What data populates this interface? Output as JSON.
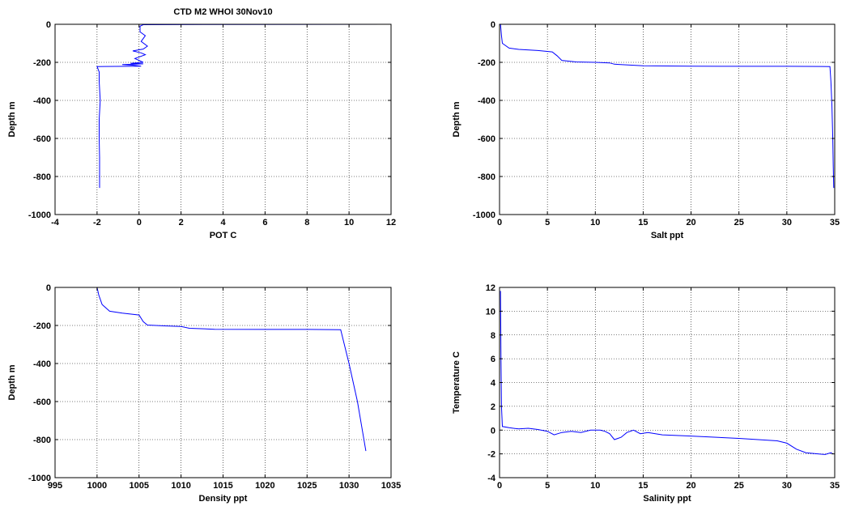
{
  "chart_data": [
    {
      "type": "line",
      "title": "CTD M2 WHOI 30Nov10",
      "xlabel": "POT C",
      "ylabel": "Depth m",
      "xlim": [
        -4,
        12
      ],
      "ylim": [
        -1000,
        0
      ],
      "xticks": [
        -4,
        -2,
        0,
        2,
        4,
        6,
        8,
        10,
        12
      ],
      "yticks": [
        -1000,
        -800,
        -600,
        -400,
        -200,
        0
      ],
      "grid": true,
      "series": [
        {
          "color": "#0000ff",
          "points": [
            [
              11.7,
              0
            ],
            [
              3,
              -1
            ],
            [
              0.2,
              -2
            ],
            [
              0.05,
              -10
            ],
            [
              0.05,
              -40
            ],
            [
              0.3,
              -60
            ],
            [
              0.1,
              -90
            ],
            [
              0.4,
              -115
            ],
            [
              0.2,
              -130
            ],
            [
              -0.3,
              -140
            ],
            [
              0.1,
              -150
            ],
            [
              0.3,
              -160
            ],
            [
              -0.2,
              -180
            ],
            [
              0.2,
              -200
            ],
            [
              -0.4,
              -205
            ],
            [
              0.2,
              -208
            ],
            [
              -0.8,
              -212
            ],
            [
              -0.3,
              -215
            ],
            [
              0.1,
              -220
            ],
            [
              -2.0,
              -222
            ],
            [
              -1.9,
              -250
            ],
            [
              -1.9,
              -300
            ],
            [
              -1.85,
              -400
            ],
            [
              -1.9,
              -500
            ],
            [
              -1.9,
              -600
            ],
            [
              -1.88,
              -700
            ],
            [
              -1.88,
              -860
            ]
          ]
        }
      ]
    },
    {
      "type": "line",
      "title": "",
      "xlabel": "Salt ppt",
      "ylabel": "Depth m",
      "xlim": [
        0,
        35
      ],
      "ylim": [
        -1000,
        0
      ],
      "xticks": [
        0,
        5,
        10,
        15,
        20,
        25,
        30,
        35
      ],
      "yticks": [
        -1000,
        -800,
        -600,
        -400,
        -200,
        0
      ],
      "grid": true,
      "series": [
        {
          "color": "#0000ff",
          "points": [
            [
              0.1,
              0
            ],
            [
              0.2,
              -60
            ],
            [
              0.3,
              -100
            ],
            [
              1,
              -125
            ],
            [
              2,
              -132
            ],
            [
              4,
              -138
            ],
            [
              5.5,
              -145
            ],
            [
              6,
              -165
            ],
            [
              6.5,
              -190
            ],
            [
              8,
              -198
            ],
            [
              10,
              -200
            ],
            [
              11.5,
              -203
            ],
            [
              12,
              -210
            ],
            [
              15,
              -218
            ],
            [
              20,
              -220
            ],
            [
              25,
              -221
            ],
            [
              30,
              -221
            ],
            [
              34.5,
              -222
            ],
            [
              34.6,
              -300
            ],
            [
              34.7,
              -420
            ],
            [
              34.8,
              -600
            ],
            [
              34.85,
              -750
            ],
            [
              34.9,
              -860
            ]
          ]
        }
      ]
    },
    {
      "type": "line",
      "title": "",
      "xlabel": "Density ppt",
      "ylabel": "Depth m",
      "xlim": [
        995,
        1035
      ],
      "ylim": [
        -1000,
        0
      ],
      "xticks": [
        995,
        1000,
        1005,
        1010,
        1015,
        1020,
        1025,
        1030,
        1035
      ],
      "yticks": [
        -1000,
        -800,
        -600,
        -400,
        -200,
        0
      ],
      "grid": true,
      "series": [
        {
          "color": "#0000ff",
          "points": [
            [
              1000,
              0
            ],
            [
              1000.2,
              -40
            ],
            [
              1000.6,
              -90
            ],
            [
              1001.5,
              -125
            ],
            [
              1003,
              -135
            ],
            [
              1005,
              -145
            ],
            [
              1005.5,
              -180
            ],
            [
              1006,
              -198
            ],
            [
              1008,
              -202
            ],
            [
              1010,
              -205
            ],
            [
              1011,
              -215
            ],
            [
              1014,
              -220
            ],
            [
              1020,
              -221
            ],
            [
              1025,
              -221
            ],
            [
              1029,
              -222
            ],
            [
              1030,
              -400
            ],
            [
              1031,
              -600
            ],
            [
              1032,
              -860
            ]
          ]
        }
      ]
    },
    {
      "type": "line",
      "title": "",
      "xlabel": "Salinity ppt",
      "ylabel": "Temperature C",
      "xlim": [
        0,
        35
      ],
      "ylim": [
        -4,
        12
      ],
      "xticks": [
        0,
        5,
        10,
        15,
        20,
        25,
        30,
        35
      ],
      "yticks": [
        -4,
        -2,
        0,
        2,
        4,
        6,
        8,
        10,
        12
      ],
      "grid": true,
      "series": [
        {
          "color": "#0000ff",
          "points": [
            [
              0.1,
              11.7
            ],
            [
              0.15,
              6
            ],
            [
              0.2,
              2
            ],
            [
              0.3,
              0.3
            ],
            [
              1,
              0.2
            ],
            [
              2,
              0.1
            ],
            [
              3,
              0.15
            ],
            [
              4,
              0.05
            ],
            [
              5,
              -0.1
            ],
            [
              5.7,
              -0.4
            ],
            [
              6.5,
              -0.2
            ],
            [
              7.5,
              -0.1
            ],
            [
              8.5,
              -0.2
            ],
            [
              9.5,
              0
            ],
            [
              10.5,
              0
            ],
            [
              11,
              -0.1
            ],
            [
              11.5,
              -0.3
            ],
            [
              12,
              -0.8
            ],
            [
              12.7,
              -0.6
            ],
            [
              13.3,
              -0.2
            ],
            [
              14,
              0
            ],
            [
              14.7,
              -0.3
            ],
            [
              15.5,
              -0.2
            ],
            [
              17,
              -0.4
            ],
            [
              20,
              -0.5
            ],
            [
              25,
              -0.7
            ],
            [
              29,
              -0.9
            ],
            [
              30,
              -1.1
            ],
            [
              31,
              -1.6
            ],
            [
              32,
              -1.9
            ],
            [
              34,
              -2.05
            ],
            [
              34.6,
              -1.9
            ],
            [
              34.8,
              -2.0
            ]
          ]
        }
      ]
    }
  ]
}
